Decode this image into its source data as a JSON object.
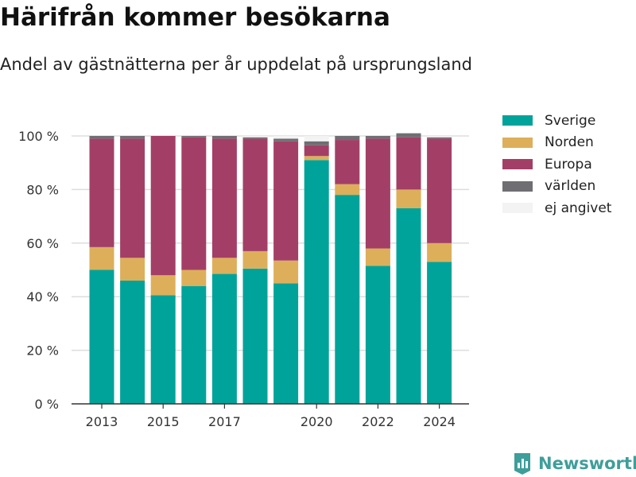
{
  "title": "Härifrån kommer besökarna",
  "subtitle": "Andel av gästnätterna per år uppdelat på ursprungsland",
  "brand": {
    "name": "Newsworthy",
    "icon": "bar-chart-flag-icon",
    "color": "#3e9e9a"
  },
  "chart_data": {
    "type": "bar",
    "stacked": true,
    "title": "Härifrån kommer besökarna",
    "subtitle": "Andel av gästnätterna per år uppdelat på ursprungsland",
    "xlabel": "",
    "ylabel": "",
    "categories": [
      "2013",
      "2014",
      "2015",
      "2016",
      "2017",
      "2018",
      "2019",
      "2020",
      "2021",
      "2022",
      "2023",
      "2024"
    ],
    "x_tick_labels": [
      "2013",
      "2015",
      "2017",
      "2020",
      "2022",
      "2024"
    ],
    "y_tick_labels": [
      "0 %",
      "20 %",
      "40 %",
      "60 %",
      "80 %",
      "100 %"
    ],
    "y_ticks": [
      0,
      20,
      40,
      60,
      80,
      100
    ],
    "ylim": [
      0,
      100
    ],
    "grid": true,
    "legend_position": "right",
    "series": [
      {
        "name": "Sverige",
        "color": "#00a39a",
        "values": [
          50,
          46,
          40.5,
          44,
          48.5,
          50.5,
          45,
          91,
          78,
          51.5,
          73,
          53
        ]
      },
      {
        "name": "Norden",
        "color": "#ddaf5a",
        "values": [
          8.5,
          8.5,
          7.5,
          6,
          6,
          6.5,
          8.5,
          1.5,
          4,
          6.5,
          7,
          7
        ]
      },
      {
        "name": "Europa",
        "color": "#a33f66",
        "values": [
          40.5,
          44.5,
          52,
          49.5,
          44.5,
          42,
          44.5,
          4,
          16.5,
          41,
          19.5,
          39
        ]
      },
      {
        "name": "världen",
        "color": "#6e6e73",
        "values": [
          1,
          1,
          0,
          0.5,
          1,
          0.5,
          1,
          1.5,
          1.5,
          1,
          1.5,
          0.5
        ]
      },
      {
        "name": "ej angivet",
        "color": "#f3f3f3",
        "values": [
          0,
          0,
          0,
          0,
          0,
          0.5,
          1,
          2,
          0,
          0,
          0,
          0.5
        ]
      }
    ]
  }
}
